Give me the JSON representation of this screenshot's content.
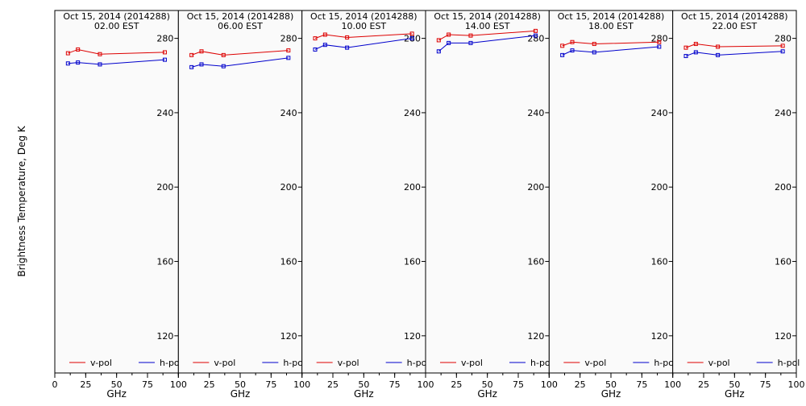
{
  "ylabel": "Brightness Temperature, Deg K",
  "xlabel": "GHz",
  "colors": {
    "v_pol": "#dd0000",
    "h_pol": "#0000cc",
    "frame": "#000000",
    "bg": "#fafafa"
  },
  "chart_data": [
    {
      "type": "line",
      "title_line1": "Oct 15, 2014 (2014288)",
      "title_line2": "02.00 EST",
      "xlabel": "GHz",
      "ylabel": "Brightness Temperature, Deg K",
      "xlim": [
        0,
        100
      ],
      "ylim": [
        100,
        295
      ],
      "xticks": [
        0,
        25,
        50,
        75,
        100
      ],
      "yticks": [
        120,
        160,
        200,
        240,
        280
      ],
      "legend_position": "bottom",
      "x": [
        10.65,
        18.7,
        36.5,
        89.0
      ],
      "series": [
        {
          "name": "v-pol",
          "values": [
            272,
            274,
            271.5,
            272.5
          ]
        },
        {
          "name": "h-pol",
          "values": [
            266.5,
            267,
            266,
            268.5
          ]
        }
      ]
    },
    {
      "type": "line",
      "title_line1": "Oct 15, 2014 (2014288)",
      "title_line2": "06.00 EST",
      "xlabel": "GHz",
      "ylabel": "",
      "xlim": [
        0,
        100
      ],
      "ylim": [
        100,
        295
      ],
      "xticks": [
        0,
        25,
        50,
        75,
        100
      ],
      "yticks": [
        120,
        160,
        200,
        240,
        280
      ],
      "legend_position": "bottom",
      "x": [
        10.65,
        18.7,
        36.5,
        89.0
      ],
      "series": [
        {
          "name": "v-pol",
          "values": [
            271,
            273,
            271,
            273.5
          ]
        },
        {
          "name": "h-pol",
          "values": [
            264.5,
            266,
            265,
            269.5
          ]
        }
      ]
    },
    {
      "type": "line",
      "title_line1": "Oct 15, 2014 (2014288)",
      "title_line2": "10.00 EST",
      "xlabel": "GHz",
      "ylabel": "",
      "xlim": [
        0,
        100
      ],
      "ylim": [
        100,
        295
      ],
      "xticks": [
        0,
        25,
        50,
        75,
        100
      ],
      "yticks": [
        120,
        160,
        200,
        240,
        280
      ],
      "legend_position": "bottom",
      "x": [
        10.65,
        18.7,
        36.5,
        89.0
      ],
      "series": [
        {
          "name": "v-pol",
          "values": [
            280,
            282,
            280.5,
            282.5
          ]
        },
        {
          "name": "h-pol",
          "values": [
            274,
            276.5,
            275,
            280
          ]
        }
      ]
    },
    {
      "type": "line",
      "title_line1": "Oct 15, 2014 (2014288)",
      "title_line2": "14.00 EST",
      "xlabel": "GHz",
      "ylabel": "",
      "xlim": [
        0,
        100
      ],
      "ylim": [
        100,
        295
      ],
      "xticks": [
        0,
        25,
        50,
        75,
        100
      ],
      "yticks": [
        120,
        160,
        200,
        240,
        280
      ],
      "legend_position": "bottom",
      "x": [
        10.65,
        18.7,
        36.5,
        89.0
      ],
      "series": [
        {
          "name": "v-pol",
          "values": [
            279,
            282,
            281.5,
            284
          ]
        },
        {
          "name": "h-pol",
          "values": [
            273,
            277.5,
            277.5,
            281.5
          ]
        }
      ]
    },
    {
      "type": "line",
      "title_line1": "Oct 15, 2014 (2014288)",
      "title_line2": "18.00 EST",
      "xlabel": "GHz",
      "ylabel": "",
      "xlim": [
        0,
        100
      ],
      "ylim": [
        100,
        295
      ],
      "xticks": [
        0,
        25,
        50,
        75,
        100
      ],
      "yticks": [
        120,
        160,
        200,
        240,
        280
      ],
      "legend_position": "bottom",
      "x": [
        10.65,
        18.7,
        36.5,
        89.0
      ],
      "series": [
        {
          "name": "v-pol",
          "values": [
            276,
            278,
            277,
            278
          ]
        },
        {
          "name": "h-pol",
          "values": [
            271,
            273.5,
            272.5,
            275.5
          ]
        }
      ]
    },
    {
      "type": "line",
      "title_line1": "Oct 15, 2014 (2014288)",
      "title_line2": "22.00 EST",
      "xlabel": "GHz",
      "ylabel": "",
      "xlim": [
        0,
        100
      ],
      "ylim": [
        100,
        295
      ],
      "xticks": [
        0,
        25,
        50,
        75,
        100
      ],
      "yticks": [
        120,
        160,
        200,
        240,
        280
      ],
      "legend_position": "bottom",
      "x": [
        10.65,
        18.7,
        36.5,
        89.0
      ],
      "series": [
        {
          "name": "v-pol",
          "values": [
            275,
            277,
            275.5,
            276
          ]
        },
        {
          "name": "h-pol",
          "values": [
            270.5,
            272.5,
            271,
            273
          ]
        }
      ]
    }
  ]
}
